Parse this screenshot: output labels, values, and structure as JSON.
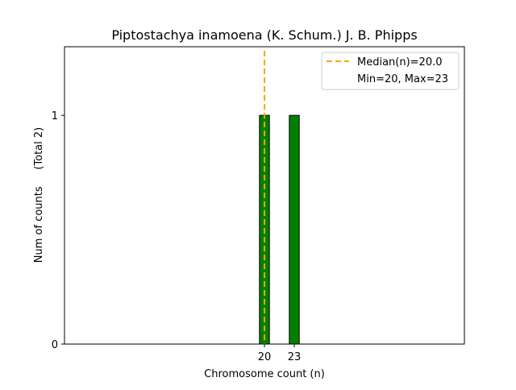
{
  "chart_data": {
    "type": "bar",
    "title": "Piptostachya inamoena (K. Schum.) J. B. Phipps",
    "xlabel": "Chromosome count (n)",
    "ylabel": "Num of counts     (Total 2)",
    "x": [
      20,
      23
    ],
    "values": [
      1,
      1
    ],
    "bar_color": "#008000",
    "xlim": [
      -0.1,
      40.1
    ],
    "ylim": [
      0,
      1.3
    ],
    "xticks": [
      "20",
      "23"
    ],
    "yticks": [
      "0",
      "1"
    ],
    "median": 20.0,
    "median_color": "#FFA500",
    "legend": {
      "position": "top-right",
      "entries": [
        "Median(n)=20.0",
        "Min=20, Max=23"
      ]
    }
  }
}
